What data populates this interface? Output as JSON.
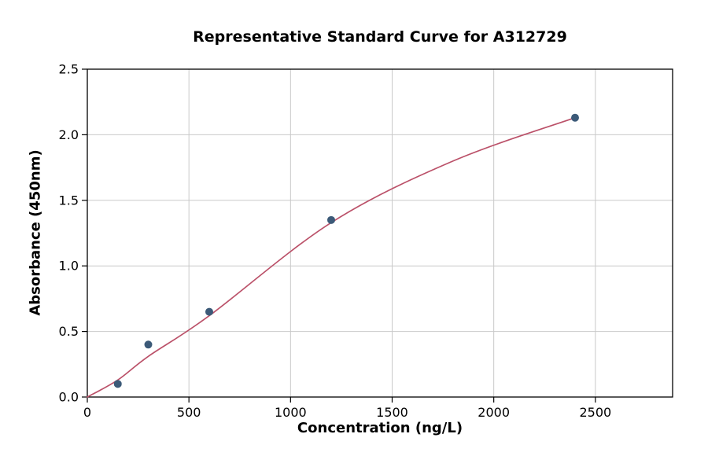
{
  "chart_data": {
    "type": "scatter",
    "title": "Representative Standard Curve for A312729",
    "xlabel": "Concentration (ng/L)",
    "ylabel": "Absorbance (450nm)",
    "xlim": [
      0,
      2880
    ],
    "ylim": [
      0,
      2.5
    ],
    "grid": true,
    "legend": "none",
    "xticks": {
      "values": [
        0,
        500,
        1000,
        1500,
        2000,
        2500
      ],
      "labels": [
        "0",
        "500",
        "1000",
        "1500",
        "2000",
        "2500"
      ]
    },
    "yticks": {
      "values": [
        0,
        0.5,
        1.0,
        1.5,
        2.0,
        2.5
      ],
      "labels": [
        "0.0",
        "0.5",
        "1.0",
        "1.5",
        "2.0",
        "2.5"
      ]
    },
    "colors": {
      "curve": "#bb5169",
      "points": "#3c5a78",
      "grid": "#c9c9c9",
      "axis": "#000000"
    },
    "series": [
      {
        "name": "fit-curve",
        "type": "line",
        "color": "#bb5169",
        "x": [
          0,
          150,
          300,
          600,
          1200,
          1800,
          2400
        ],
        "y": [
          0.0,
          0.13,
          0.31,
          0.62,
          1.33,
          1.8,
          2.13
        ]
      },
      {
        "name": "standard-points",
        "type": "scatter",
        "color": "#3c5a78",
        "x": [
          150,
          300,
          600,
          1200,
          2400
        ],
        "y": [
          0.1,
          0.4,
          0.65,
          1.35,
          2.13
        ]
      }
    ]
  }
}
